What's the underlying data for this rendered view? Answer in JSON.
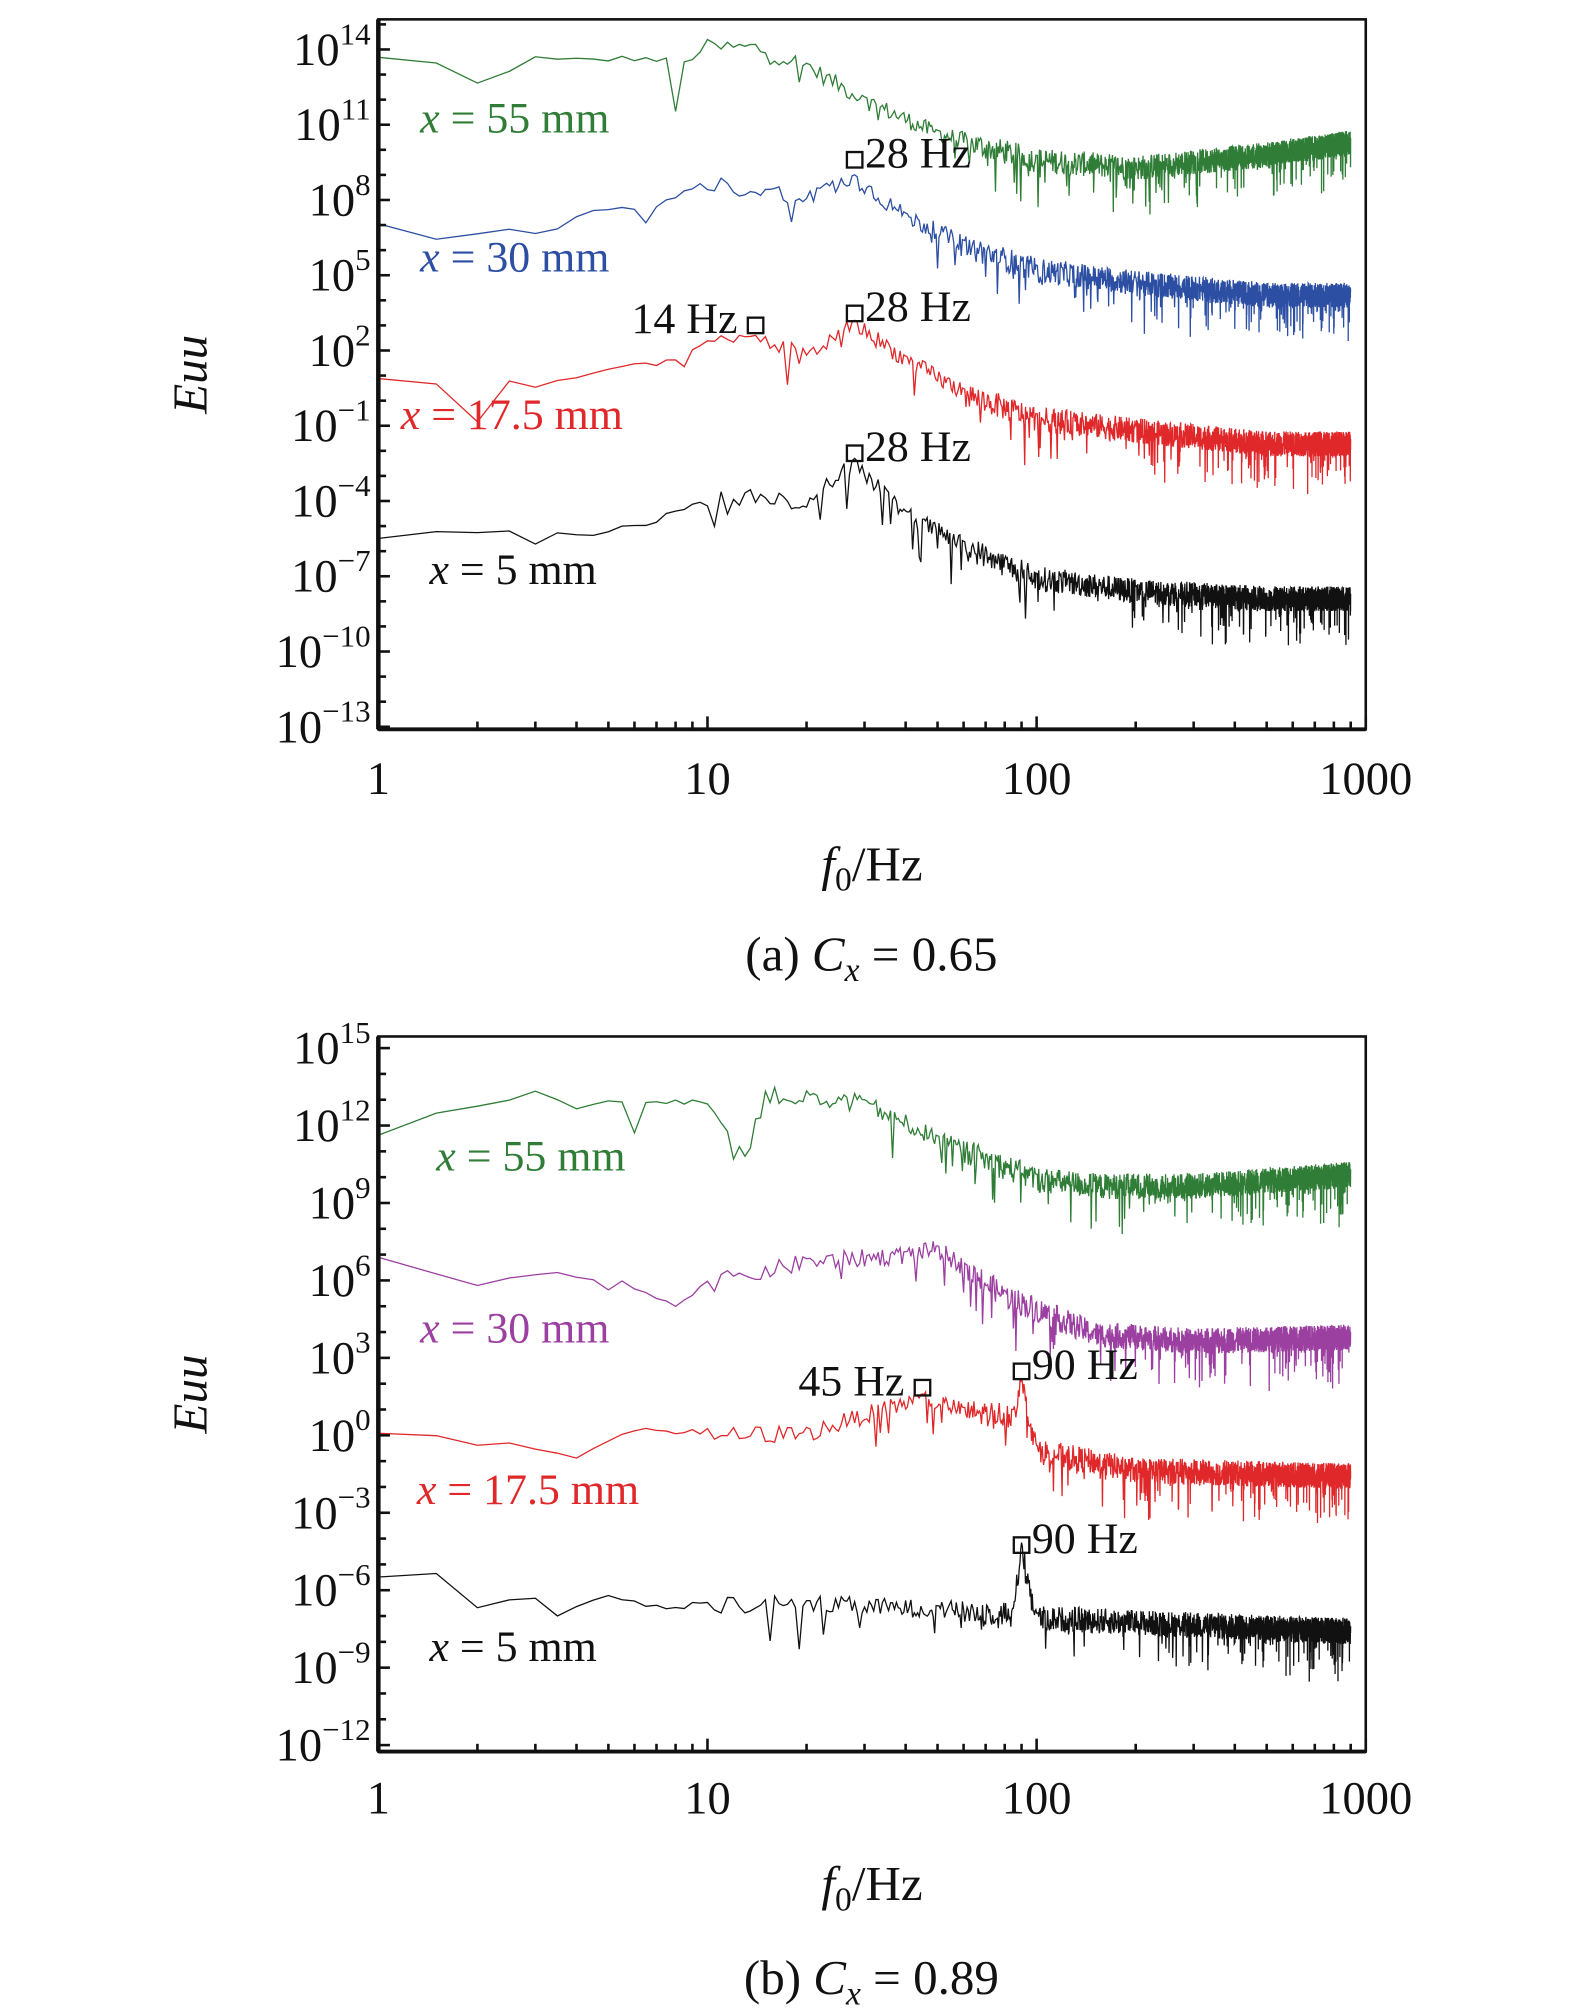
{
  "chart_data": [
    {
      "type": "line",
      "caption": {
        "prefix": "(a) ",
        "var": "C",
        "sub": "x",
        "suffix": " = 0.65"
      },
      "xlabel": {
        "var": "f",
        "sub": "0",
        "suffix": "/Hz"
      },
      "ylabel": "Euu",
      "xscale": "log",
      "yscale": "log",
      "xlim": [
        1,
        1000
      ],
      "ylim": [
        1e-13,
        1000000000000000.0
      ],
      "xticks": [
        {
          "value": 1,
          "label": "1"
        },
        {
          "value": 10,
          "label": "10"
        },
        {
          "value": 100,
          "label": "100"
        },
        {
          "value": 1000,
          "label": "1000"
        }
      ],
      "yticks": [
        {
          "base": "10",
          "exp": "14"
        },
        {
          "base": "10",
          "exp": "11"
        },
        {
          "base": "10",
          "exp": "8"
        },
        {
          "base": "10",
          "exp": "5"
        },
        {
          "base": "10",
          "exp": "2"
        },
        {
          "base": "10",
          "exp": "−1"
        },
        {
          "base": "10",
          "exp": "−4"
        },
        {
          "base": "10",
          "exp": "−7"
        },
        {
          "base": "10",
          "exp": "−10"
        },
        {
          "base": "10",
          "exp": "−13"
        }
      ],
      "grid": false,
      "series": [
        {
          "name": "x = 55 mm",
          "color": "#2f7d36",
          "label_at": [
            1.34,
            50000000000.0
          ],
          "points": [
            [
              1,
              50000000000000.0
            ],
            [
              1.5,
              30000000000000.0
            ],
            [
              2.2,
              2500000000000.0
            ],
            [
              2.7,
              60000000000000.0
            ],
            [
              3.5,
              40000000000000.0
            ],
            [
              6,
              50000000000000.0
            ],
            [
              7.5,
              40000000000000.0
            ],
            [
              8,
              400000000000.0
            ],
            [
              8.5,
              30000000000000.0
            ],
            [
              10,
              160000000000000.0
            ],
            [
              14,
              160000000000000.0
            ],
            [
              20,
              30000000000000.0
            ],
            [
              30,
              1300000000000.0
            ],
            [
              50,
              60000000000.0
            ],
            [
              100,
              6000000000.0
            ],
            [
              200,
              3000000000.0
            ],
            [
              500,
              10000000000.0
            ],
            [
              900,
              30000000000.0
            ]
          ]
        },
        {
          "name": "x = 30 mm",
          "color": "#2c4fa3",
          "label_at": [
            1.34,
            140000.0
          ],
          "points": [
            [
              1,
              13000000.0
            ],
            [
              1.5,
              4000000.0
            ],
            [
              2,
              6000000.0
            ],
            [
              2.5,
              6000000.0
            ],
            [
              3,
              4000000.0
            ],
            [
              4,
              20000000.0
            ],
            [
              5,
              50000000.0
            ],
            [
              7,
              60000000.0
            ],
            [
              10,
              600000000.0
            ],
            [
              15,
              300000000.0
            ],
            [
              20,
              200000000.0
            ],
            [
              28,
              1000000000.0
            ],
            [
              40,
              30000000.0
            ],
            [
              60,
              2500000.0
            ],
            [
              100,
              250000.0
            ],
            [
              200,
              80000.0
            ],
            [
              500,
              25000.0
            ],
            [
              900,
              25000.0
            ]
          ]
        },
        {
          "name": "x = 17.5 mm",
          "color": "#e0282a",
          "label_at": [
            1.17,
            0.075
          ],
          "points": [
            [
              1,
              8
            ],
            [
              1.5,
              4
            ],
            [
              2,
              6
            ],
            [
              2.5,
              6
            ],
            [
              3,
              4
            ],
            [
              5,
              20
            ],
            [
              7,
              30
            ],
            [
              10,
              200
            ],
            [
              14,
              500
            ],
            [
              20,
              80
            ],
            [
              28,
              1600.0
            ],
            [
              40,
              60
            ],
            [
              60,
              3
            ],
            [
              100,
              0.3
            ],
            [
              200,
              0.1
            ],
            [
              500,
              0.03
            ],
            [
              900,
              0.03
            ]
          ]
        },
        {
          "name": "x = 5 mm",
          "color": "#111111",
          "label_at": [
            1.43,
            5e-08
          ],
          "points": [
            [
              1,
              3e-06
            ],
            [
              1.5,
              6e-06
            ],
            [
              3,
              1e-05
            ],
            [
              4,
              5e-06
            ],
            [
              6,
              1e-05
            ],
            [
              8,
              4e-05
            ],
            [
              10,
              0.00014
            ],
            [
              15,
              0.00025
            ],
            [
              20,
              0.0001
            ],
            [
              28,
              0.005
            ],
            [
              40,
              4e-05
            ],
            [
              60,
              2.5e-06
            ],
            [
              100,
              1.3e-07
            ],
            [
              200,
              4e-08
            ],
            [
              500,
              2e-08
            ],
            [
              900,
              2e-08
            ]
          ]
        }
      ],
      "annotations": [
        {
          "text": "28 Hz",
          "f": 28,
          "value": 4000000000.0,
          "side": "right"
        },
        {
          "text": "14 Hz",
          "f": 14,
          "value": 1000.0,
          "side": "left"
        },
        {
          "text": "28 Hz",
          "f": 28,
          "value": 3000.0,
          "side": "right"
        },
        {
          "text": "28 Hz",
          "f": 28,
          "value": 0.008,
          "side": "right"
        }
      ]
    },
    {
      "type": "line",
      "caption": {
        "prefix": "(b) ",
        "var": "C",
        "sub": "x",
        "suffix": " = 0.89"
      },
      "xlabel": {
        "var": "f",
        "sub": "0",
        "suffix": "/Hz"
      },
      "ylabel": "Euu",
      "xscale": "log",
      "yscale": "log",
      "xlim": [
        1,
        1000
      ],
      "ylim": [
        1e-12,
        1000000000000000.0
      ],
      "xticks": [
        {
          "value": 1,
          "label": "1"
        },
        {
          "value": 10,
          "label": "10"
        },
        {
          "value": 100,
          "label": "100"
        },
        {
          "value": 1000,
          "label": "1000"
        }
      ],
      "yticks": [
        {
          "base": "10",
          "exp": "15"
        },
        {
          "base": "10",
          "exp": "12"
        },
        {
          "base": "10",
          "exp": "9"
        },
        {
          "base": "10",
          "exp": "6"
        },
        {
          "base": "10",
          "exp": "3"
        },
        {
          "base": "10",
          "exp": "0"
        },
        {
          "base": "10",
          "exp": "−3"
        },
        {
          "base": "10",
          "exp": "−6"
        },
        {
          "base": "10",
          "exp": "−9"
        },
        {
          "base": "10",
          "exp": "−12"
        }
      ],
      "grid": false,
      "series": [
        {
          "name": "x = 55 mm",
          "color": "#2f7d36",
          "label_at": [
            1.5,
            18000000000.0
          ],
          "points": [
            [
              1,
              7000000000000.0
            ],
            [
              1.5,
              4000000000000.0
            ],
            [
              2,
              8000000000000.0
            ],
            [
              3,
              20000000000000.0
            ],
            [
              4,
              4000000000000.0
            ],
            [
              5,
              10000000000000.0
            ],
            [
              7,
              10000000000000.0
            ],
            [
              10,
              10000000000000.0
            ],
            [
              13,
              100000000000.0
            ],
            [
              15,
              20000000000000.0
            ],
            [
              30,
              10000000000000.0
            ],
            [
              50,
              400000000000.0
            ],
            [
              100,
              13000000000.0
            ],
            [
              150,
              7000000000.0
            ],
            [
              300,
              7000000000.0
            ],
            [
              900,
              20000000000.0
            ]
          ]
        },
        {
          "name": "x = 30 mm",
          "color": "#9b3fa0",
          "label_at": [
            1.34,
            4000.0
          ],
          "points": [
            [
              1,
              9000000.0
            ],
            [
              2,
              700000.0
            ],
            [
              3,
              2000000.0
            ],
            [
              5,
              1500000.0
            ],
            [
              8,
              130000.0
            ],
            [
              10,
              1000000.0
            ],
            [
              20,
              7000000.0
            ],
            [
              40,
              13000000.0
            ],
            [
              50,
              22000000.0
            ],
            [
              80,
              400000.0
            ],
            [
              150,
              13000.0
            ],
            [
              300,
              7000.0
            ],
            [
              900,
              10000.0
            ]
          ]
        },
        {
          "name": "x = 17.5 mm",
          "color": "#e0282a",
          "label_at": [
            1.31,
            0.0022
          ],
          "points": [
            [
              1,
              1.3
            ],
            [
              2,
              0.6
            ],
            [
              4,
              0.22
            ],
            [
              6,
              2
            ],
            [
              10,
              1.3
            ],
            [
              20,
              1.6
            ],
            [
              45,
              40
            ],
            [
              60,
              12
            ],
            [
              85,
              10
            ],
            [
              90,
              160
            ],
            [
              100,
              0.4
            ],
            [
              200,
              0.07
            ],
            [
              900,
              0.04
            ]
          ]
        },
        {
          "name": "x = 5 mm",
          "color": "#111111",
          "label_at": [
            1.43,
            1.8e-09
          ],
          "points": [
            [
              1,
              4e-06
            ],
            [
              1.5,
              4e-06
            ],
            [
              2,
              2.2e-07
            ],
            [
              3,
              6e-07
            ],
            [
              3.5,
              1.5e-07
            ],
            [
              5,
              6e-07
            ],
            [
              8,
              2e-07
            ],
            [
              10,
              4e-07
            ],
            [
              20,
              4e-07
            ],
            [
              50,
              2.5e-07
            ],
            [
              85,
              2e-07
            ],
            [
              90,
              7e-05
            ],
            [
              100,
              1.3e-07
            ],
            [
              300,
              7e-08
            ],
            [
              900,
              4e-08
            ]
          ]
        }
      ],
      "annotations": [
        {
          "text": "45 Hz",
          "f": 45,
          "value": 70,
          "side": "left"
        },
        {
          "text": "90 Hz",
          "f": 90,
          "value": 300,
          "side": "right"
        },
        {
          "text": "90 Hz",
          "f": 90,
          "value": 5.6e-05,
          "side": "right"
        }
      ]
    }
  ]
}
